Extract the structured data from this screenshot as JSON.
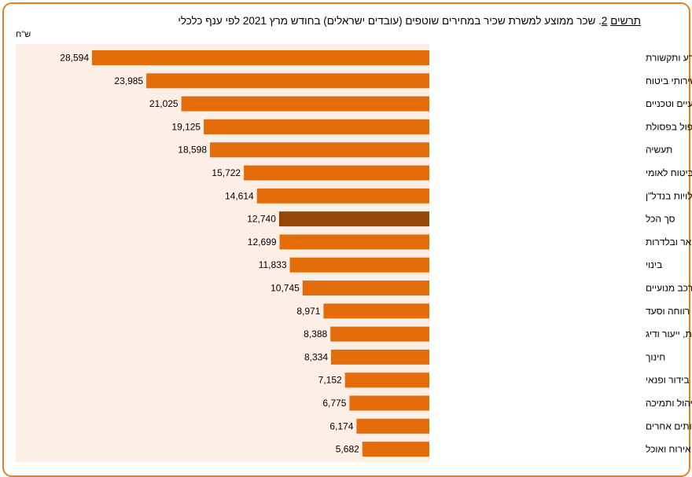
{
  "title": {
    "prefix": "תרשים",
    "number": "2",
    "text": ". שכר ממוצע למשרת שכיר במחירים שוטפים (עובדים ישראלים) בחודש  מרץ 2021  לפי ענף כלכלי"
  },
  "unit": "ש\"ח",
  "colors": {
    "bar": "#e46c0a",
    "highlight": "#974806",
    "plot_bg": "#fdeee6",
    "frame": "#e8801c"
  },
  "chart_data": {
    "type": "bar",
    "orientation": "horizontal",
    "categories": [
      "מידע ותקשורת",
      "שירותים פיננסיים ושירותי ביטוח",
      "שירותים מקצועיים, מדעיים וטכניים",
      "אספקת חשמל ומים, שירותי ביוב וטיהור וטיפול בפסולת",
      "תעשיה",
      "מינהל מקומי, ציבורי וביטחון וביטוח לאומי",
      "פעילויות בנדל\"ן",
      "סך הכל",
      "שירותי תחבורה, אחסנה, דואר ובלדרות",
      "בינוי",
      "מסחר סיטוני וקמעוני ותיקון כלי רכב מנועיים",
      "שירותי בריאות, רווחה וסעד",
      "חקלאות, ייעור ודיג",
      "חינוך",
      "אמנות, בידור ופנאי",
      "שירותי ניהול ותמיכה",
      "שירותים אחרים",
      "שירותי אירוח ואוכל"
    ],
    "values": [
      28594,
      23985,
      21025,
      19125,
      18598,
      15722,
      14614,
      12740,
      12699,
      11833,
      10745,
      8971,
      8388,
      8334,
      7152,
      6775,
      6174,
      5682
    ],
    "value_labels": [
      "28,594",
      "23,985",
      "21,025",
      "19,125",
      "18,598",
      "15,722",
      "14,614",
      "12,740",
      "12,699",
      "11,833",
      "10,745",
      "8,971",
      "8,388",
      "8,334",
      "7,152",
      "6,775",
      "6,174",
      "5,682"
    ],
    "highlight_category": "סך הכל",
    "axis_direction": "right-to-left",
    "grid": false,
    "legend": false
  }
}
